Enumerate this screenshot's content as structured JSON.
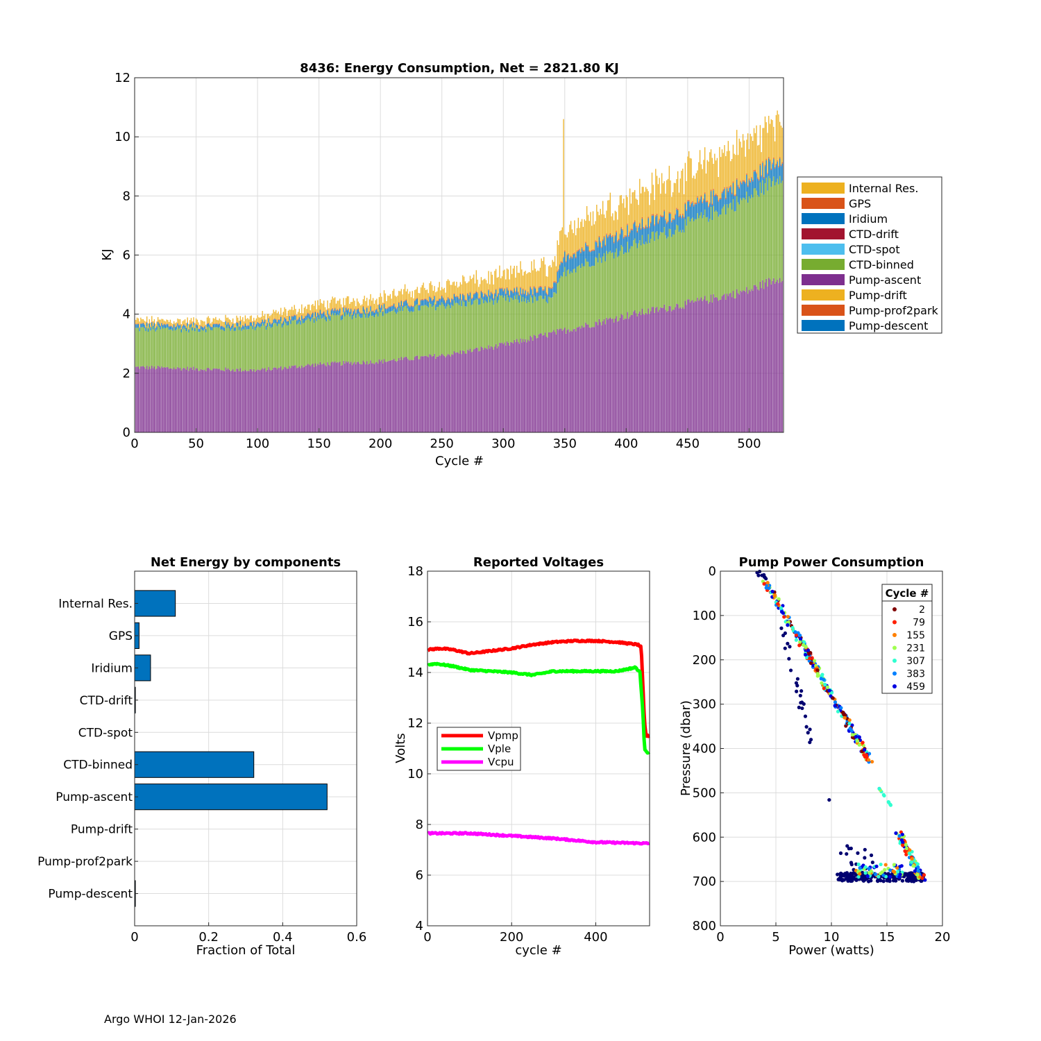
{
  "footer": "Argo WHOI 12-Jan-2026",
  "chart_data": [
    {
      "type": "bar",
      "stacked": true,
      "title": "8436: Energy Consumption,  Net = 2821.80 KJ",
      "xlabel": "Cycle #",
      "ylabel": "KJ",
      "xlim": [
        0,
        528
      ],
      "ylim": [
        0,
        12
      ],
      "xticks": [
        0,
        50,
        100,
        150,
        200,
        250,
        300,
        350,
        400,
        450,
        500
      ],
      "yticks": [
        0,
        2,
        4,
        6,
        8,
        10,
        12
      ],
      "grid": true,
      "legend_position": "outside-right",
      "legend": [
        "Internal Res.",
        "GPS",
        "Iridium",
        "CTD-drift",
        "CTD-spot",
        "CTD-binned",
        "Pump-ascent",
        "Pump-drift",
        "Pump-prof2park",
        "Pump-descent"
      ],
      "colors": {
        "Internal Res.": "#edb120",
        "GPS": "#d95319",
        "Iridium": "#0072bd",
        "CTD-drift": "#a2142f",
        "CTD-spot": "#4dbeee",
        "CTD-binned": "#77ac30",
        "Pump-ascent": "#7e2f8e",
        "Pump-drift": "#edb120",
        "Pump-prof2park": "#d95319",
        "Pump-descent": "#0072bd"
      },
      "series_profile": {
        "cycles": [
          1,
          5,
          50,
          100,
          150,
          200,
          250,
          300,
          340,
          350,
          400,
          450,
          500,
          528
        ],
        "Pump-ascent": [
          2.2,
          2.2,
          2.15,
          2.1,
          2.3,
          2.4,
          2.6,
          2.95,
          3.35,
          3.45,
          3.95,
          4.35,
          4.8,
          5.3
        ],
        "CTD-binned": [
          1.3,
          1.3,
          1.35,
          1.45,
          1.55,
          1.65,
          1.7,
          1.55,
          1.15,
          2.0,
          2.3,
          2.7,
          3.15,
          3.5
        ],
        "Iridium": [
          0.12,
          0.12,
          0.1,
          0.12,
          0.15,
          0.15,
          0.2,
          0.22,
          0.3,
          0.5,
          0.55,
          0.5,
          0.55,
          0.6
        ],
        "Internal Res.": [
          0.15,
          0.15,
          0.15,
          0.2,
          0.3,
          0.35,
          0.45,
          0.55,
          0.85,
          0.9,
          1.1,
          1.2,
          1.3,
          1.3
        ],
        "GPS": [
          0.02,
          0.02,
          0.02,
          0.02,
          0.03,
          0.03,
          0.03,
          0.03,
          0.04,
          0.04,
          0.05,
          0.05,
          0.05,
          0.05
        ]
      },
      "spike": {
        "cycle": 349,
        "total": 10.6
      }
    },
    {
      "type": "bar",
      "orientation": "horizontal",
      "title": "Net Energy by components",
      "xlabel": "Fraction of Total",
      "ylabel": "",
      "xlim": [
        0,
        0.6
      ],
      "xticks": [
        0,
        0.2,
        0.4,
        0.6
      ],
      "xtick_labels": [
        "0",
        "0.2",
        "0.4",
        "0.6"
      ],
      "grid": true,
      "color": "#0072bd",
      "categories": [
        "Internal Res.",
        "GPS",
        "Iridium",
        "CTD-drift",
        "CTD-spot",
        "CTD-binned",
        "Pump-ascent",
        "Pump-drift",
        "Pump-prof2park",
        "Pump-descent"
      ],
      "values": [
        0.11,
        0.012,
        0.043,
        0.002,
        0.0,
        0.322,
        0.52,
        0.0,
        0.0,
        0.002
      ]
    },
    {
      "type": "line",
      "title": "Reported Voltages",
      "xlabel": "cycle #",
      "ylabel": "Volts",
      "xlim": [
        0,
        528
      ],
      "ylim": [
        4,
        18
      ],
      "xticks": [
        0,
        200,
        400
      ],
      "yticks": [
        4,
        6,
        8,
        10,
        12,
        14,
        16,
        18
      ],
      "grid": true,
      "legend_position": "center-left",
      "series": [
        {
          "name": "Vpmp",
          "color": "#ff0000",
          "x": [
            1,
            30,
            60,
            100,
            150,
            200,
            250,
            300,
            350,
            400,
            450,
            500,
            508,
            512,
            516,
            520,
            528
          ],
          "values": [
            14.9,
            14.95,
            14.9,
            14.75,
            14.85,
            14.95,
            15.1,
            15.2,
            15.25,
            15.25,
            15.2,
            15.1,
            15.0,
            13.5,
            12.0,
            11.5,
            11.5
          ]
        },
        {
          "name": "Vple",
          "color": "#00ff00",
          "x": [
            1,
            20,
            60,
            100,
            150,
            200,
            250,
            300,
            350,
            400,
            450,
            495,
            505,
            512,
            516,
            520,
            528
          ],
          "values": [
            14.3,
            14.35,
            14.25,
            14.1,
            14.05,
            14.0,
            13.9,
            14.05,
            14.05,
            14.05,
            14.05,
            14.2,
            14.0,
            12.5,
            11.0,
            10.85,
            10.85
          ]
        },
        {
          "name": "Vcpu",
          "color": "#ff00ff",
          "x": [
            1,
            100,
            200,
            300,
            400,
            528
          ],
          "values": [
            7.65,
            7.65,
            7.55,
            7.45,
            7.3,
            7.25
          ]
        }
      ]
    },
    {
      "type": "scatter",
      "title": "Pump Power Consumption",
      "xlabel": "Power (watts)",
      "ylabel": "Pressure (dbar)",
      "xlim": [
        0,
        20
      ],
      "ylim": [
        0,
        800
      ],
      "y_reversed": true,
      "xticks": [
        0,
        5,
        10,
        15,
        20
      ],
      "yticks": [
        0,
        100,
        200,
        300,
        400,
        500,
        600,
        700,
        800
      ],
      "grid": true,
      "legend_title": "Cycle #",
      "legend_position": "top-right",
      "legend": [
        {
          "label": "2",
          "color": "#800000"
        },
        {
          "label": "79",
          "color": "#ff2000"
        },
        {
          "label": "155",
          "color": "#ff8000"
        },
        {
          "label": "231",
          "color": "#a0ff50"
        },
        {
          "label": "307",
          "color": "#30ffd0"
        },
        {
          "label": "383",
          "color": "#0080ff"
        },
        {
          "label": "459",
          "color": "#0000e0"
        }
      ],
      "point_groups": [
        {
          "desc": "main ascent line",
          "x0": 3.5,
          "y0": 0,
          "x1": 13.5,
          "y1": 430
        },
        {
          "desc": "early-cycle deep branch",
          "x0": 5.5,
          "y0": 120,
          "x1": 8.2,
          "y1": 390
        },
        {
          "desc": "mid-depth points",
          "x0": 14.3,
          "y0": 490,
          "x1": 15.4,
          "y1": 530
        },
        {
          "desc": "near-bottom band",
          "x0": 10.5,
          "y0": 680,
          "x1": 18.3,
          "y1": 700
        },
        {
          "desc": "descent edge",
          "x0": 16.0,
          "y0": 590,
          "x1": 18.2,
          "y1": 695
        }
      ]
    }
  ]
}
